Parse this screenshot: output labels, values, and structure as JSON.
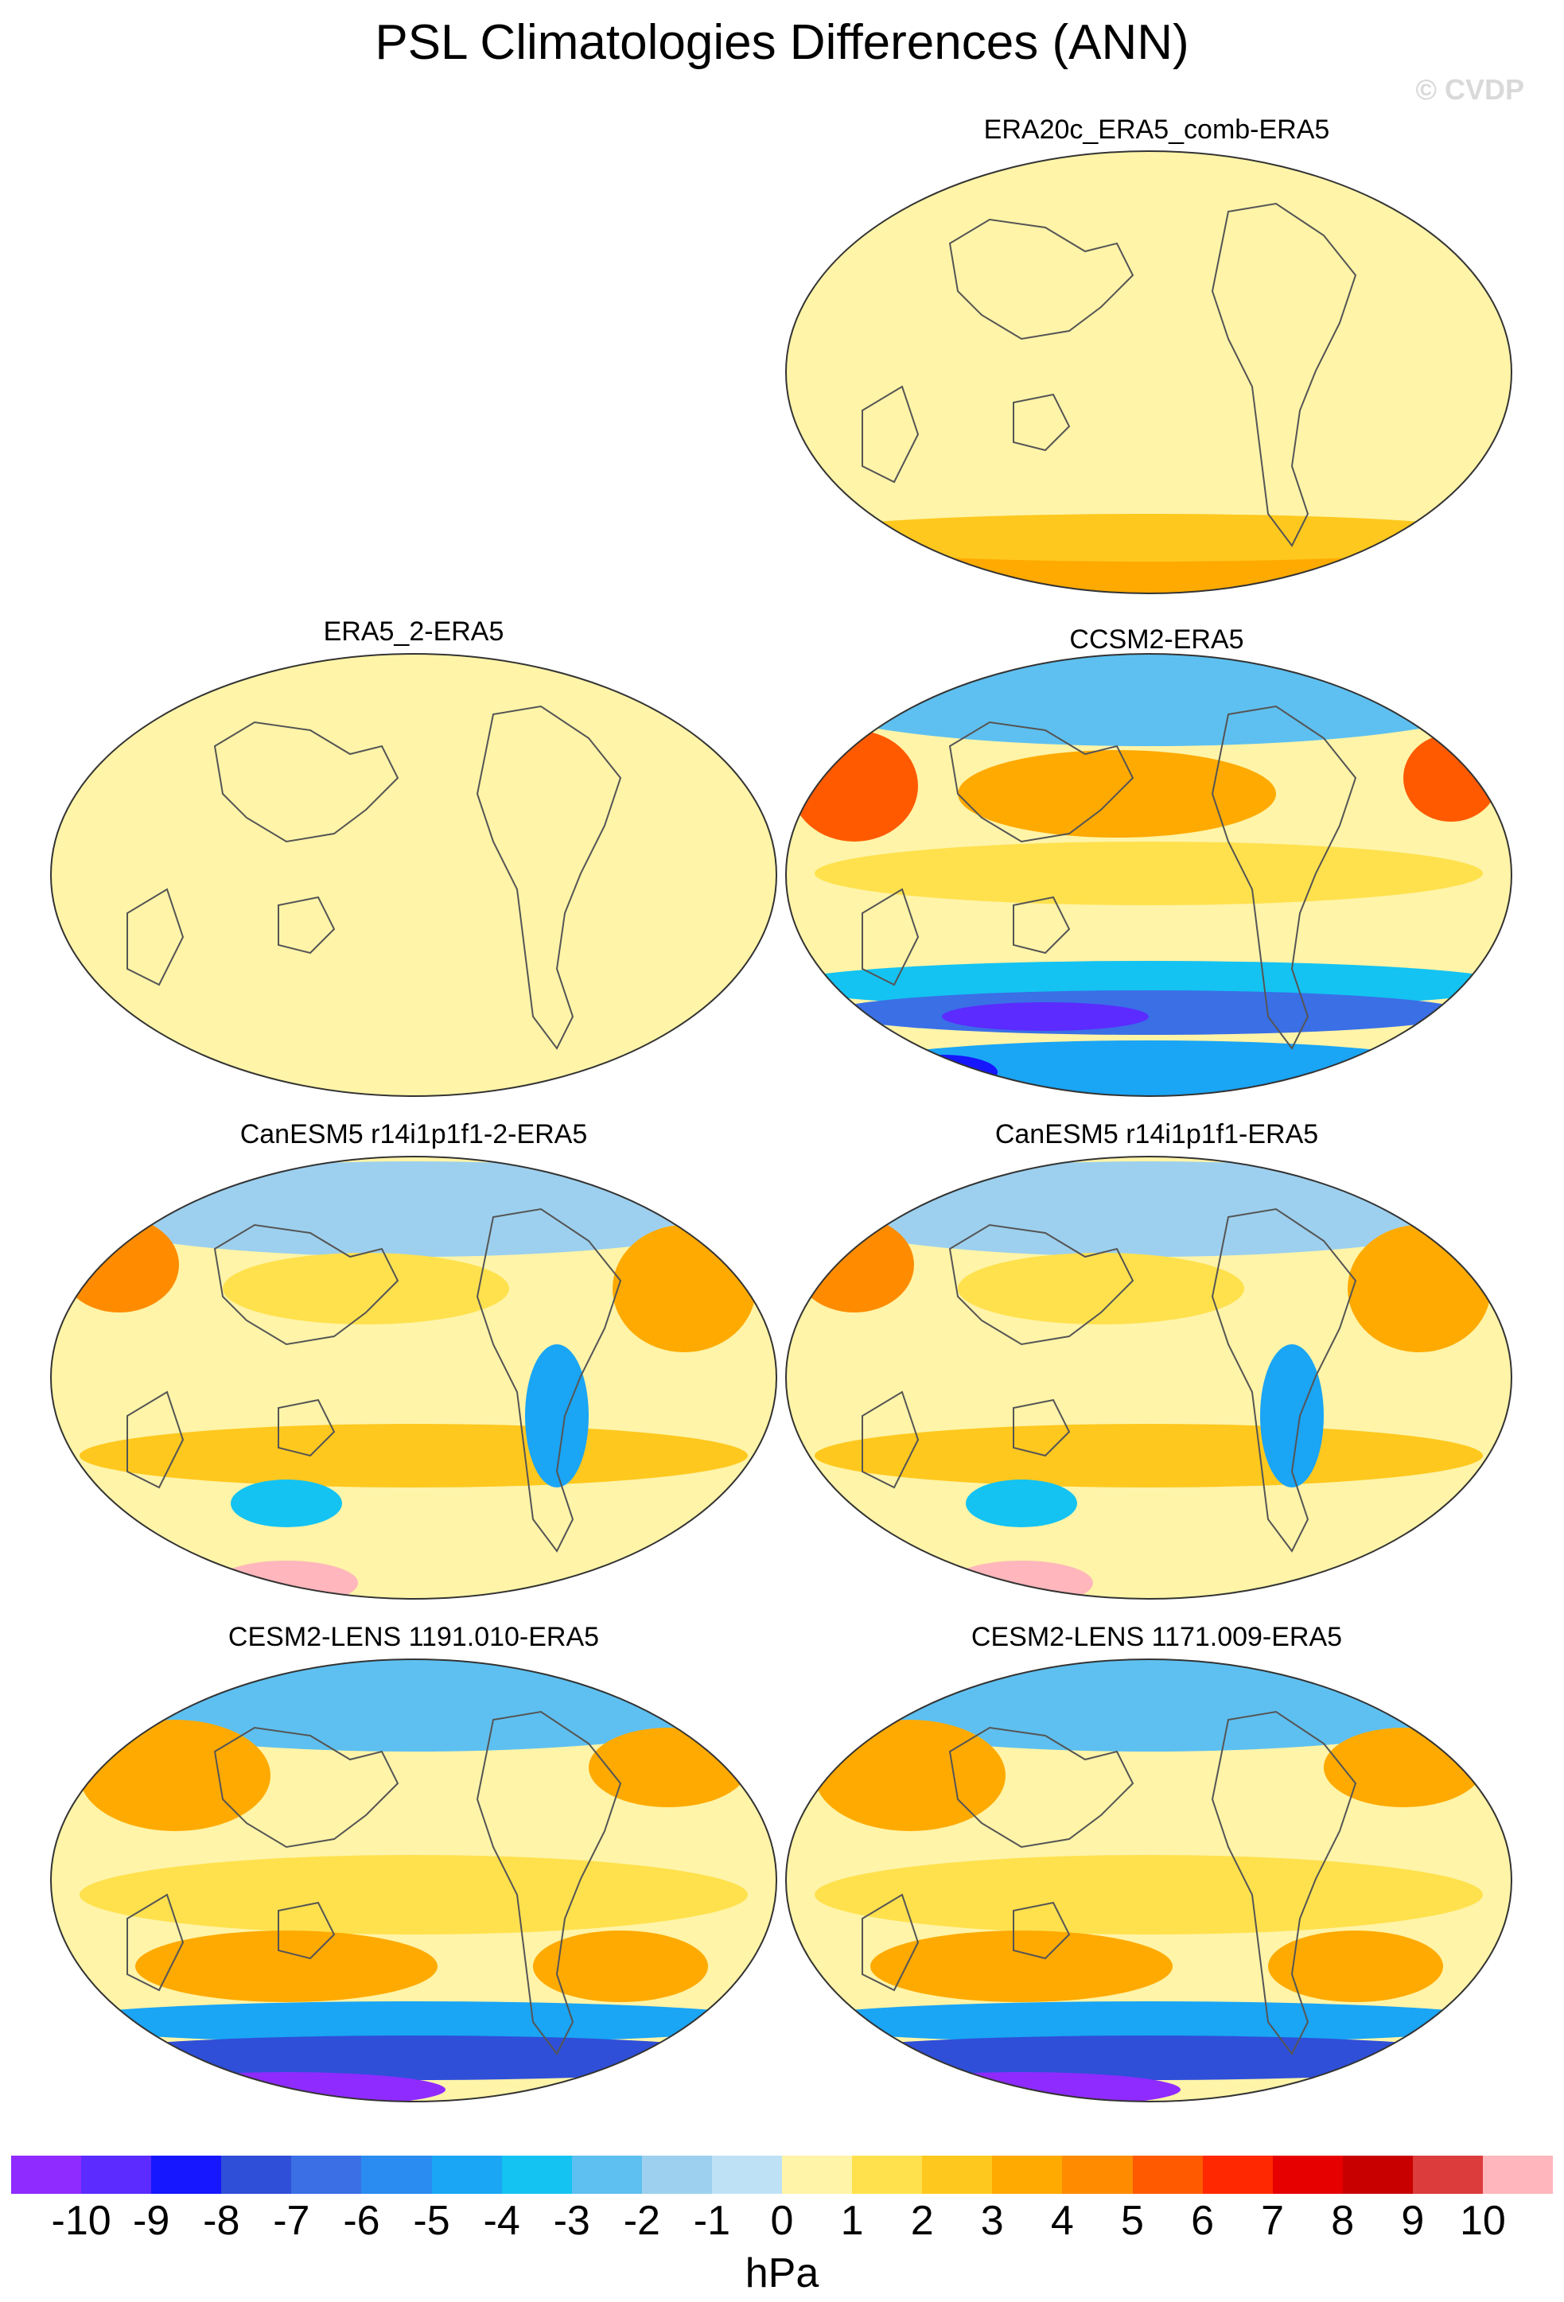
{
  "figure": {
    "title": "PSL Climatologies Differences (ANN)",
    "watermark": "© CVDP"
  },
  "panels": [
    {
      "title": "ERA20c_ERA5_comb-ERA5",
      "base": 1
    },
    {
      "title": "ERA5_2-ERA5",
      "base": 1
    },
    {
      "title": "CCSM2-ERA5",
      "base": 2
    },
    {
      "title": "CanESM5 r14i1p1f1-2-ERA5",
      "base": 2
    },
    {
      "title": "CanESM5 r14i1p1f1-ERA5",
      "base": 2
    },
    {
      "title": "CESM2-LENS 1191.010-ERA5",
      "base": 2
    },
    {
      "title": "CESM2-LENS 1171.009-ERA5",
      "base": 2
    }
  ],
  "colorbar": {
    "units": "hPa",
    "labels": [
      "-10",
      "-9",
      "-8",
      "-7",
      "-6",
      "-5",
      "-4",
      "-3",
      "-2",
      "-1",
      "0",
      "1",
      "2",
      "3",
      "4",
      "5",
      "6",
      "7",
      "8",
      "9",
      "10"
    ],
    "colors": [
      "#8f2bff",
      "#5b2bff",
      "#1616ff",
      "#2f4fd8",
      "#3a6fe6",
      "#2a8cf0",
      "#1aa5f5",
      "#14c3f2",
      "#5ec0f0",
      "#9dd0ee",
      "#bfe1f5",
      "#fff4a8",
      "#ffe14d",
      "#ffc81e",
      "#ffaa00",
      "#ff8c00",
      "#ff5a00",
      "#ff2800",
      "#e60000",
      "#c80000",
      "#dc3c3c",
      "#ffb6bc"
    ]
  }
}
